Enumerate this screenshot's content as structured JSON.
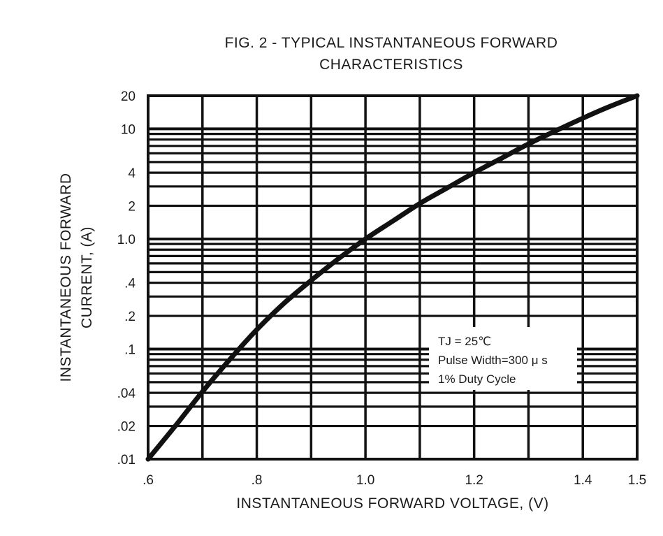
{
  "chart_data": {
    "type": "line",
    "title": "FIG. 2 - TYPICAL INSTANTANEOUS FORWARD",
    "subtitle": "CHARACTERISTICS",
    "xlabel": "INSTANTANEOUS FORWARD VOLTAGE, (V)",
    "ylabel_line1": "INSTANTANEOUS FORWARD",
    "ylabel_line2": "CURRENT, (A)",
    "x_scale": "linear",
    "y_scale": "log",
    "xlim": [
      0.6,
      1.5
    ],
    "ylim": [
      0.01,
      20
    ],
    "grid": true,
    "x_ticks": [
      {
        "value": 0.6,
        "label": ".6"
      },
      {
        "value": 0.8,
        "label": ".8"
      },
      {
        "value": 1.0,
        "label": "1.0"
      },
      {
        "value": 1.2,
        "label": "1.2"
      },
      {
        "value": 1.4,
        "label": "1.4"
      },
      {
        "value": 1.5,
        "label": "1.5"
      }
    ],
    "y_ticks": [
      {
        "value": 0.01,
        "label": ".01"
      },
      {
        "value": 0.02,
        "label": ".02"
      },
      {
        "value": 0.04,
        "label": ".04"
      },
      {
        "value": 0.1,
        "label": ".1"
      },
      {
        "value": 0.2,
        "label": ".2"
      },
      {
        "value": 0.4,
        "label": ".4"
      },
      {
        "value": 1.0,
        "label": "1.0"
      },
      {
        "value": 2,
        "label": "2"
      },
      {
        "value": 4,
        "label": "4"
      },
      {
        "value": 10,
        "label": "10"
      },
      {
        "value": 20,
        "label": "20"
      }
    ],
    "series": [
      {
        "x": [
          0.6,
          0.65,
          0.7,
          0.75,
          0.8,
          0.85,
          0.9,
          0.95,
          1.0,
          1.05,
          1.1,
          1.15,
          1.2,
          1.25,
          1.3,
          1.35,
          1.4,
          1.45,
          1.5
        ],
        "y": [
          0.01,
          0.02,
          0.041,
          0.08,
          0.15,
          0.26,
          0.42,
          0.66,
          1.0,
          1.45,
          2.1,
          2.9,
          4.0,
          5.4,
          7.3,
          9.6,
          12.5,
          16.0,
          20.0
        ]
      }
    ],
    "annotation": {
      "line1": "TJ = 25℃",
      "line2": "Pulse Width=300 μ s",
      "line3": "1% Duty Cycle"
    }
  }
}
